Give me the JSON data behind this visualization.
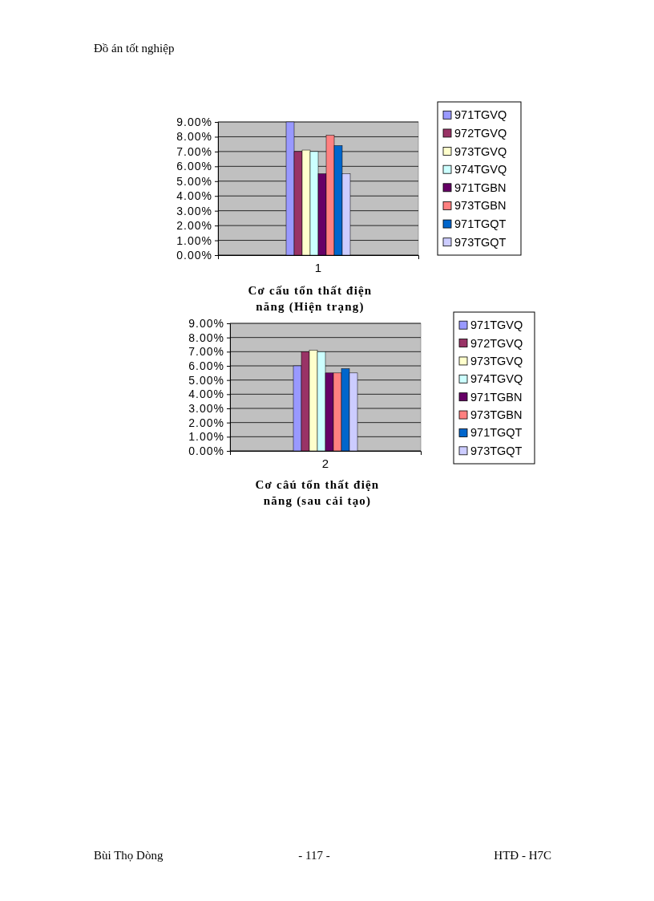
{
  "chart_data": [
    {
      "type": "bar",
      "title": "Cơ cấu tổn thất điện năng (Hiện trạng)",
      "categories": [
        "1"
      ],
      "series": [
        {
          "name": "971TGVQ",
          "color": "#9999ff",
          "values": [
            9.0
          ]
        },
        {
          "name": "972TGVQ",
          "color": "#993366",
          "values": [
            7.0
          ]
        },
        {
          "name": "973TGVQ",
          "color": "#ffffcc",
          "values": [
            7.1
          ]
        },
        {
          "name": "974TGVQ",
          "color": "#ccffff",
          "values": [
            7.0
          ]
        },
        {
          "name": "971TGBN",
          "color": "#660066",
          "values": [
            5.5
          ]
        },
        {
          "name": "973TGBN",
          "color": "#ff8080",
          "values": [
            8.1
          ]
        },
        {
          "name": "971TGQT",
          "color": "#0066cc",
          "values": [
            7.4
          ]
        },
        {
          "name": "973TGQT",
          "color": "#ccccff",
          "values": [
            5.5
          ]
        }
      ],
      "ylim": [
        0,
        9
      ],
      "yticks": [
        {
          "value": 0,
          "label": "0.00%"
        },
        {
          "value": 1,
          "label": "1.00%"
        },
        {
          "value": 2,
          "label": "2.00%"
        },
        {
          "value": 3,
          "label": "3.00%"
        },
        {
          "value": 4,
          "label": "4.00%"
        },
        {
          "value": 5,
          "label": "5.00%"
        },
        {
          "value": 6,
          "label": "6.00%"
        },
        {
          "value": 7,
          "label": "7.00%"
        },
        {
          "value": 8,
          "label": "8.00%"
        },
        {
          "value": 9,
          "label": "9.00%"
        }
      ],
      "grid": "y",
      "legend": "right",
      "annotations": [
        "Đồ án tốt nghiệp"
      ]
    },
    {
      "type": "bar",
      "title": "Cơ câú tổn thất điện năng (sau cải tạo)",
      "categories": [
        "2"
      ],
      "series": [
        {
          "name": "971TGVQ",
          "color": "#9999ff",
          "values": [
            6.0
          ]
        },
        {
          "name": "972TGVQ",
          "color": "#993366",
          "values": [
            7.0
          ]
        },
        {
          "name": "973TGVQ",
          "color": "#ffffcc",
          "values": [
            7.1
          ]
        },
        {
          "name": "974TGVQ",
          "color": "#ccffff",
          "values": [
            7.0
          ]
        },
        {
          "name": "971TGBN",
          "color": "#660066",
          "values": [
            5.5
          ]
        },
        {
          "name": "973TGBN",
          "color": "#ff8080",
          "values": [
            5.5
          ]
        },
        {
          "name": "971TGQT",
          "color": "#0066cc",
          "values": [
            5.8
          ]
        },
        {
          "name": "973TGQT",
          "color": "#ccccff",
          "values": [
            5.5
          ]
        }
      ],
      "ylim": [
        0,
        9
      ],
      "yticks": [
        {
          "value": 0,
          "label": "0.00%"
        },
        {
          "value": 1,
          "label": "1.00%"
        },
        {
          "value": 2,
          "label": "2.00%"
        },
        {
          "value": 3,
          "label": "3.00%"
        },
        {
          "value": 4,
          "label": "4.00%"
        },
        {
          "value": 5,
          "label": "5.00%"
        },
        {
          "value": 6,
          "label": "6.00%"
        },
        {
          "value": 7,
          "label": "7.00%"
        },
        {
          "value": 8,
          "label": "8.00%"
        },
        {
          "value": 9,
          "label": "9.00%"
        }
      ],
      "grid": "y",
      "legend": "right",
      "annotations": [
        "Bùi Thọ Dòng",
        "- 117 -",
        "HTĐ - H7C"
      ]
    }
  ]
}
